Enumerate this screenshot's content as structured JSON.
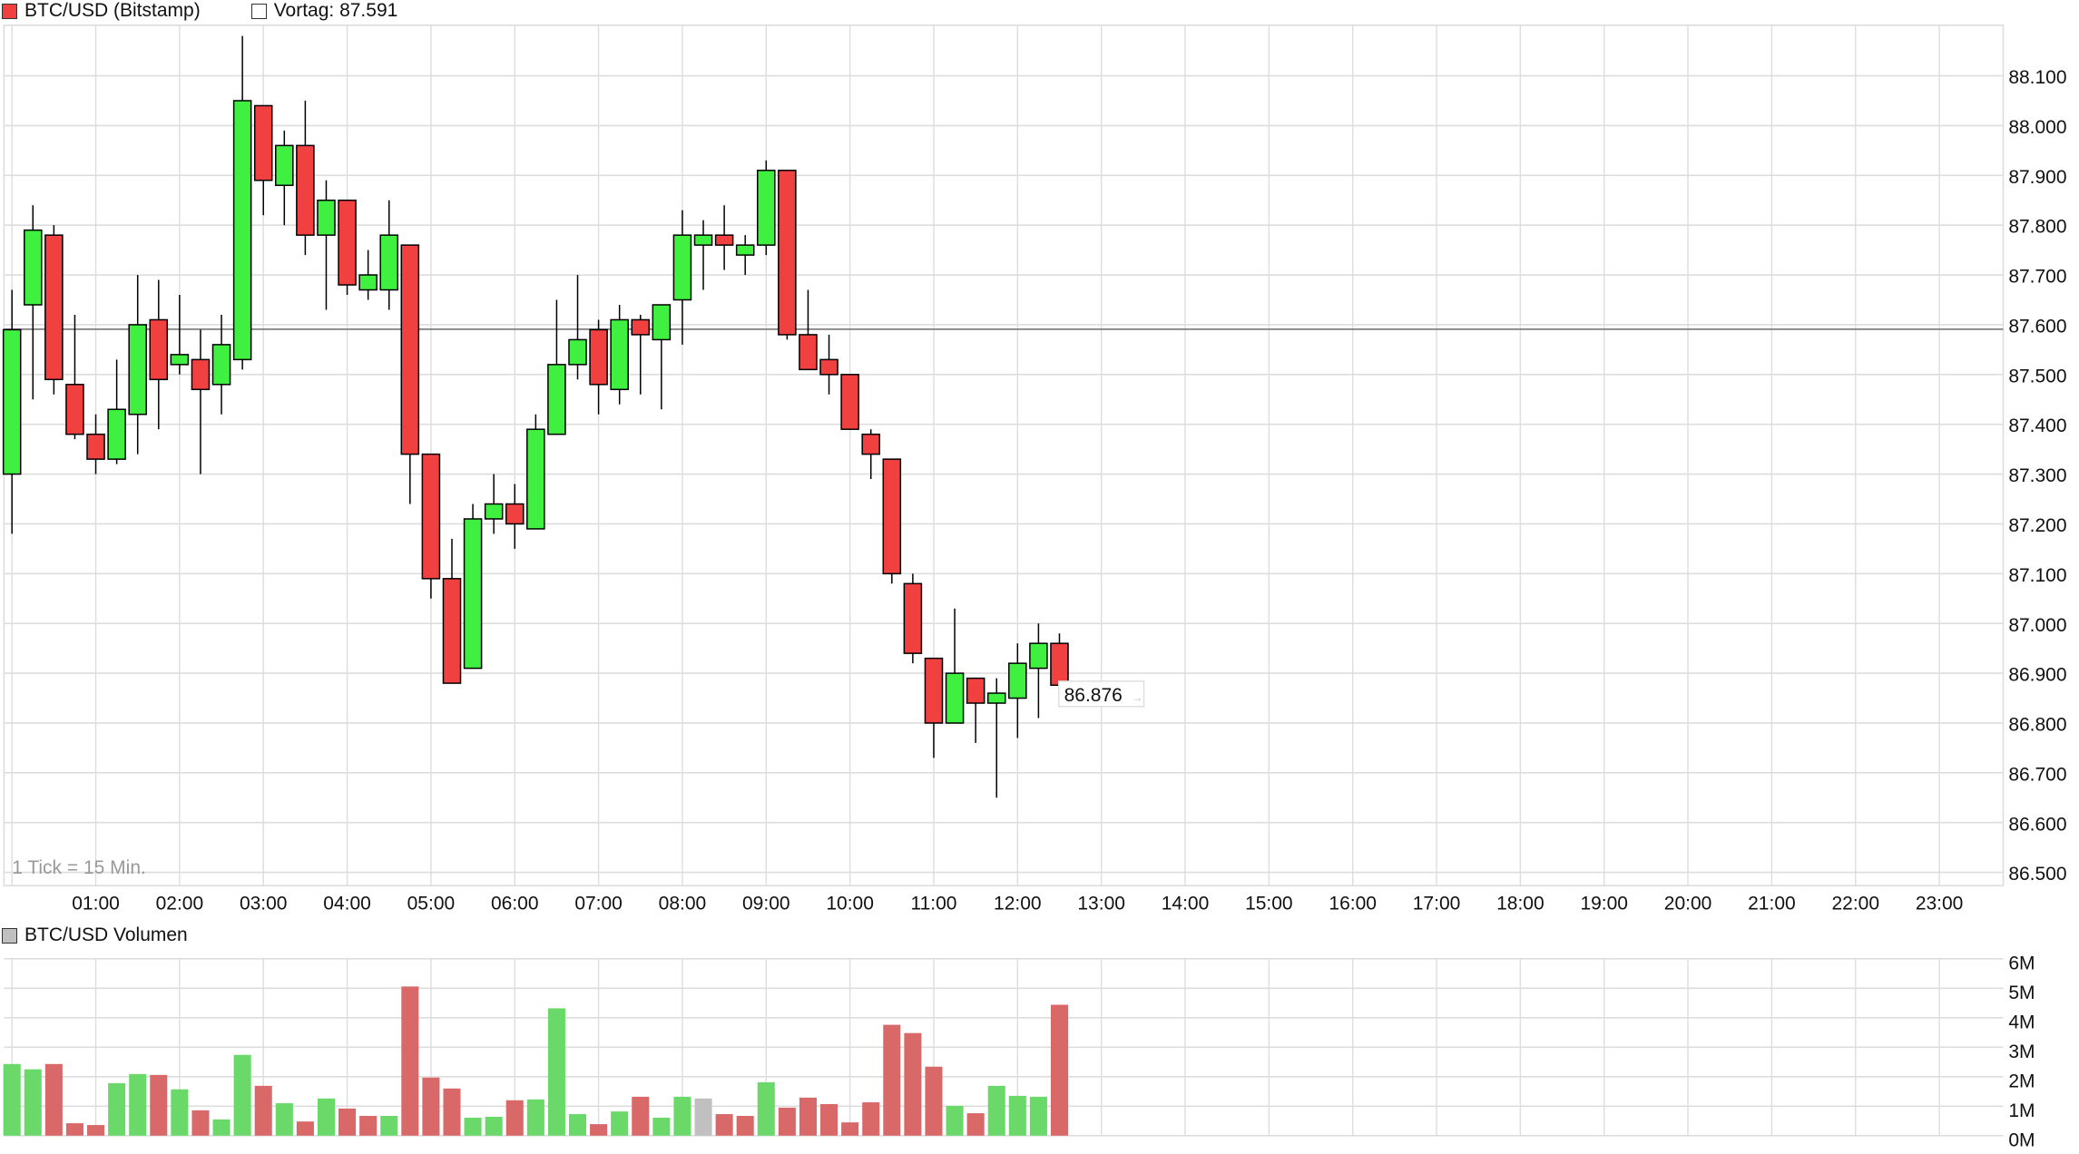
{
  "price_panel": {
    "legend_series": "BTC/USD (Bitstamp)",
    "legend_series_color": "#f04040",
    "legend_prev": "Vortag: 87.591",
    "prev_close": 87.591,
    "tick_note": "1 Tick = 15 Min.",
    "last_price_label": "86.876",
    "last_price": 86.876,
    "y_ticks": [
      "88.100",
      "88.000",
      "87.900",
      "87.800",
      "87.700",
      "87.600",
      "87.500",
      "87.400",
      "87.300",
      "87.200",
      "87.100",
      "87.000",
      "86.900",
      "86.800",
      "86.700",
      "86.600",
      "86.500"
    ],
    "x_ticks": [
      "01:00",
      "02:00",
      "03:00",
      "04:00",
      "05:00",
      "06:00",
      "07:00",
      "08:00",
      "09:00",
      "10:00",
      "11:00",
      "12:00",
      "13:00",
      "14:00",
      "15:00",
      "16:00",
      "17:00",
      "18:00",
      "19:00",
      "20:00",
      "21:00",
      "22:00",
      "23:00"
    ]
  },
  "volume_panel": {
    "legend_series": "BTC/USD Volumen",
    "legend_series_color": "#c0c0c0",
    "y_ticks": [
      "6M",
      "5M",
      "4M",
      "3M",
      "2M",
      "1M",
      "0M"
    ]
  },
  "colors": {
    "up": "#40f040",
    "down": "#f04040",
    "vol_up": "#6ad96a",
    "vol_down": "#d96868",
    "vol_neutral": "#c0c0c0",
    "grid": "#dddddd",
    "prev_line": "#808080"
  },
  "chart_data": [
    {
      "type": "candlestick",
      "title": "BTC/USD (Bitstamp)",
      "interval": "15 min",
      "reference_line": {
        "label": "Vortag",
        "value": 87.591
      },
      "ylim": [
        86.5,
        88.15
      ],
      "xlabel": "",
      "ylabel": "",
      "grid": true,
      "legend_position": "top-left",
      "x_range": [
        "00:00",
        "24:00"
      ],
      "candles": [
        {
          "t": "00:00",
          "o": 87.3,
          "h": 87.67,
          "l": 87.18,
          "c": 87.59
        },
        {
          "t": "00:15",
          "o": 87.64,
          "h": 87.84,
          "l": 87.45,
          "c": 87.79
        },
        {
          "t": "00:30",
          "o": 87.78,
          "h": 87.8,
          "l": 87.46,
          "c": 87.49
        },
        {
          "t": "00:45",
          "o": 87.48,
          "h": 87.62,
          "l": 87.37,
          "c": 87.38
        },
        {
          "t": "01:00",
          "o": 87.38,
          "h": 87.42,
          "l": 87.3,
          "c": 87.33
        },
        {
          "t": "01:15",
          "o": 87.33,
          "h": 87.53,
          "l": 87.32,
          "c": 87.43
        },
        {
          "t": "01:30",
          "o": 87.42,
          "h": 87.7,
          "l": 87.34,
          "c": 87.6
        },
        {
          "t": "01:45",
          "o": 87.61,
          "h": 87.69,
          "l": 87.39,
          "c": 87.49
        },
        {
          "t": "02:00",
          "o": 87.52,
          "h": 87.66,
          "l": 87.5,
          "c": 87.54
        },
        {
          "t": "02:15",
          "o": 87.53,
          "h": 87.59,
          "l": 87.3,
          "c": 87.47
        },
        {
          "t": "02:30",
          "o": 87.48,
          "h": 87.62,
          "l": 87.42,
          "c": 87.56
        },
        {
          "t": "02:45",
          "o": 87.53,
          "h": 88.18,
          "l": 87.51,
          "c": 88.05
        },
        {
          "t": "03:00",
          "o": 88.04,
          "h": 88.04,
          "l": 87.82,
          "c": 87.89
        },
        {
          "t": "03:15",
          "o": 87.88,
          "h": 87.99,
          "l": 87.8,
          "c": 87.96
        },
        {
          "t": "03:30",
          "o": 87.96,
          "h": 88.05,
          "l": 87.74,
          "c": 87.78
        },
        {
          "t": "03:45",
          "o": 87.78,
          "h": 87.89,
          "l": 87.63,
          "c": 87.85
        },
        {
          "t": "04:00",
          "o": 87.85,
          "h": 87.85,
          "l": 87.66,
          "c": 87.68
        },
        {
          "t": "04:15",
          "o": 87.67,
          "h": 87.75,
          "l": 87.65,
          "c": 87.7
        },
        {
          "t": "04:30",
          "o": 87.67,
          "h": 87.85,
          "l": 87.63,
          "c": 87.78
        },
        {
          "t": "04:45",
          "o": 87.76,
          "h": 87.76,
          "l": 87.24,
          "c": 87.34
        },
        {
          "t": "05:00",
          "o": 87.34,
          "h": 87.34,
          "l": 87.05,
          "c": 87.09
        },
        {
          "t": "05:15",
          "o": 87.09,
          "h": 87.17,
          "l": 86.88,
          "c": 86.88
        },
        {
          "t": "05:30",
          "o": 86.91,
          "h": 87.24,
          "l": 86.91,
          "c": 87.21
        },
        {
          "t": "05:45",
          "o": 87.21,
          "h": 87.3,
          "l": 87.18,
          "c": 87.24
        },
        {
          "t": "06:00",
          "o": 87.24,
          "h": 87.28,
          "l": 87.15,
          "c": 87.2
        },
        {
          "t": "06:15",
          "o": 87.19,
          "h": 87.42,
          "l": 87.19,
          "c": 87.39
        },
        {
          "t": "06:30",
          "o": 87.38,
          "h": 87.65,
          "l": 87.38,
          "c": 87.52
        },
        {
          "t": "06:45",
          "o": 87.52,
          "h": 87.7,
          "l": 87.49,
          "c": 87.57
        },
        {
          "t": "07:00",
          "o": 87.59,
          "h": 87.61,
          "l": 87.42,
          "c": 87.48
        },
        {
          "t": "07:15",
          "o": 87.47,
          "h": 87.64,
          "l": 87.44,
          "c": 87.61
        },
        {
          "t": "07:30",
          "o": 87.61,
          "h": 87.62,
          "l": 87.46,
          "c": 87.58
        },
        {
          "t": "07:45",
          "o": 87.57,
          "h": 87.64,
          "l": 87.43,
          "c": 87.64
        },
        {
          "t": "08:00",
          "o": 87.65,
          "h": 87.83,
          "l": 87.56,
          "c": 87.78
        },
        {
          "t": "08:15",
          "o": 87.76,
          "h": 87.81,
          "l": 87.67,
          "c": 87.78
        },
        {
          "t": "08:30",
          "o": 87.78,
          "h": 87.84,
          "l": 87.71,
          "c": 87.76
        },
        {
          "t": "08:45",
          "o": 87.74,
          "h": 87.78,
          "l": 87.7,
          "c": 87.76
        },
        {
          "t": "09:00",
          "o": 87.76,
          "h": 87.93,
          "l": 87.74,
          "c": 87.91
        },
        {
          "t": "09:15",
          "o": 87.91,
          "h": 87.91,
          "l": 87.57,
          "c": 87.58
        },
        {
          "t": "09:30",
          "o": 87.58,
          "h": 87.67,
          "l": 87.51,
          "c": 87.51
        },
        {
          "t": "09:45",
          "o": 87.53,
          "h": 87.58,
          "l": 87.46,
          "c": 87.5
        },
        {
          "t": "10:00",
          "o": 87.5,
          "h": 87.5,
          "l": 87.39,
          "c": 87.39
        },
        {
          "t": "10:15",
          "o": 87.38,
          "h": 87.39,
          "l": 87.29,
          "c": 87.34
        },
        {
          "t": "10:30",
          "o": 87.33,
          "h": 87.33,
          "l": 87.08,
          "c": 87.1
        },
        {
          "t": "10:45",
          "o": 87.08,
          "h": 87.1,
          "l": 86.92,
          "c": 86.94
        },
        {
          "t": "11:00",
          "o": 86.93,
          "h": 86.93,
          "l": 86.73,
          "c": 86.8
        },
        {
          "t": "11:15",
          "o": 86.8,
          "h": 87.03,
          "l": 86.8,
          "c": 86.9
        },
        {
          "t": "11:30",
          "o": 86.89,
          "h": 86.89,
          "l": 86.76,
          "c": 86.84
        },
        {
          "t": "11:45",
          "o": 86.84,
          "h": 86.89,
          "l": 86.65,
          "c": 86.86
        },
        {
          "t": "12:00",
          "o": 86.85,
          "h": 86.96,
          "l": 86.77,
          "c": 86.92
        },
        {
          "t": "12:15",
          "o": 86.91,
          "h": 87.0,
          "l": 86.81,
          "c": 86.96
        },
        {
          "t": "12:30",
          "o": 86.96,
          "h": 86.98,
          "l": 86.87,
          "c": 86.876
        }
      ]
    },
    {
      "type": "bar",
      "title": "BTC/USD Volumen",
      "ylabel": "",
      "xlabel": "",
      "ylim": [
        0,
        6
      ],
      "unit": "M",
      "grid": true,
      "categories": [
        "00:00",
        "00:15",
        "00:30",
        "00:45",
        "01:00",
        "01:15",
        "01:30",
        "01:45",
        "02:00",
        "02:15",
        "02:30",
        "02:45",
        "03:00",
        "03:15",
        "03:30",
        "03:45",
        "04:00",
        "04:15",
        "04:30",
        "04:45",
        "05:00",
        "05:15",
        "05:30",
        "05:45",
        "06:00",
        "06:15",
        "06:30",
        "06:45",
        "07:00",
        "07:15",
        "07:30",
        "07:45",
        "08:00",
        "08:15",
        "08:30",
        "08:45",
        "09:00",
        "09:15",
        "09:30",
        "09:45",
        "10:00",
        "10:15",
        "10:30",
        "10:45",
        "11:00",
        "11:15",
        "11:30",
        "11:45",
        "12:00",
        "12:15",
        "12:30"
      ],
      "values": [
        2.43,
        2.25,
        2.43,
        0.42,
        0.36,
        1.78,
        2.09,
        2.06,
        1.57,
        0.86,
        0.55,
        2.74,
        1.69,
        1.1,
        0.48,
        1.26,
        0.92,
        0.67,
        0.67,
        5.06,
        1.97,
        1.6,
        0.61,
        0.64,
        1.2,
        1.23,
        4.32,
        0.73,
        0.39,
        0.82,
        1.32,
        0.61,
        1.32,
        1.26,
        0.73,
        0.67,
        1.81,
        0.95,
        1.29,
        1.07,
        0.45,
        1.13,
        3.76,
        3.48,
        2.34,
        1.01,
        0.76,
        1.69,
        1.35,
        1.32,
        4.44
      ],
      "directions": [
        "up",
        "up",
        "down",
        "down",
        "down",
        "up",
        "up",
        "down",
        "up",
        "down",
        "up",
        "up",
        "down",
        "up",
        "down",
        "up",
        "down",
        "down",
        "up",
        "down",
        "down",
        "down",
        "up",
        "up",
        "down",
        "up",
        "up",
        "up",
        "down",
        "up",
        "down",
        "up",
        "up",
        "neutral",
        "down",
        "down",
        "up",
        "down",
        "down",
        "down",
        "down",
        "down",
        "down",
        "down",
        "down",
        "up",
        "down",
        "up",
        "up",
        "up",
        "down"
      ]
    }
  ]
}
